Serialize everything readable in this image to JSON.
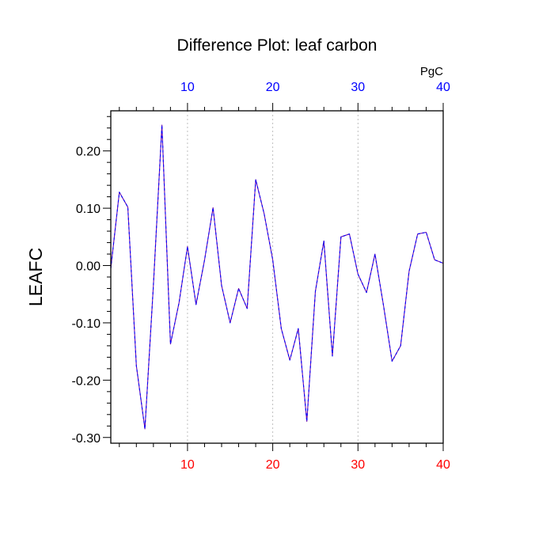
{
  "chart_data": {
    "type": "line",
    "title": "Difference Plot: leaf carbon",
    "ylabel": "LEAFC",
    "top_axis_units": "PgC",
    "xlim": [
      1,
      40
    ],
    "ylim": [
      -0.31,
      0.27
    ],
    "x_ticks": [
      10,
      20,
      30,
      40
    ],
    "y_ticks": [
      0.2,
      0.1,
      0.0,
      -0.1,
      -0.2,
      -0.3
    ],
    "y_tick_labels": [
      "0.20",
      "0.10",
      "0.00",
      "-0.10",
      "-0.20",
      "-0.30"
    ],
    "x_grid": "dotted vertical lines at major x ticks",
    "bottom_axis_color": "#ff0000",
    "top_axis_color": "#0000ff",
    "series": [
      {
        "color": "#6a0dad",
        "dash_color": "#0000ff",
        "x": [
          1,
          2,
          3,
          4,
          5,
          6,
          7,
          8,
          9,
          10,
          11,
          12,
          13,
          14,
          15,
          16,
          17,
          18,
          19,
          20,
          21,
          22,
          23,
          24,
          25,
          26,
          27,
          28,
          29,
          30,
          31,
          32,
          33,
          34,
          35,
          36,
          37,
          38,
          39,
          40
        ],
        "y": [
          -0.005,
          0.128,
          0.102,
          -0.175,
          -0.285,
          -0.035,
          0.245,
          -0.137,
          -0.065,
          0.033,
          -0.068,
          0.01,
          0.101,
          -0.035,
          -0.1,
          -0.04,
          -0.075,
          0.15,
          0.09,
          0.01,
          -0.11,
          -0.165,
          -0.11,
          -0.272,
          -0.045,
          0.043,
          -0.158,
          0.05,
          0.055,
          -0.015,
          -0.047,
          0.02,
          -0.07,
          -0.167,
          -0.14,
          -0.01,
          0.055,
          0.058,
          0.01,
          0.004
        ]
      }
    ]
  }
}
